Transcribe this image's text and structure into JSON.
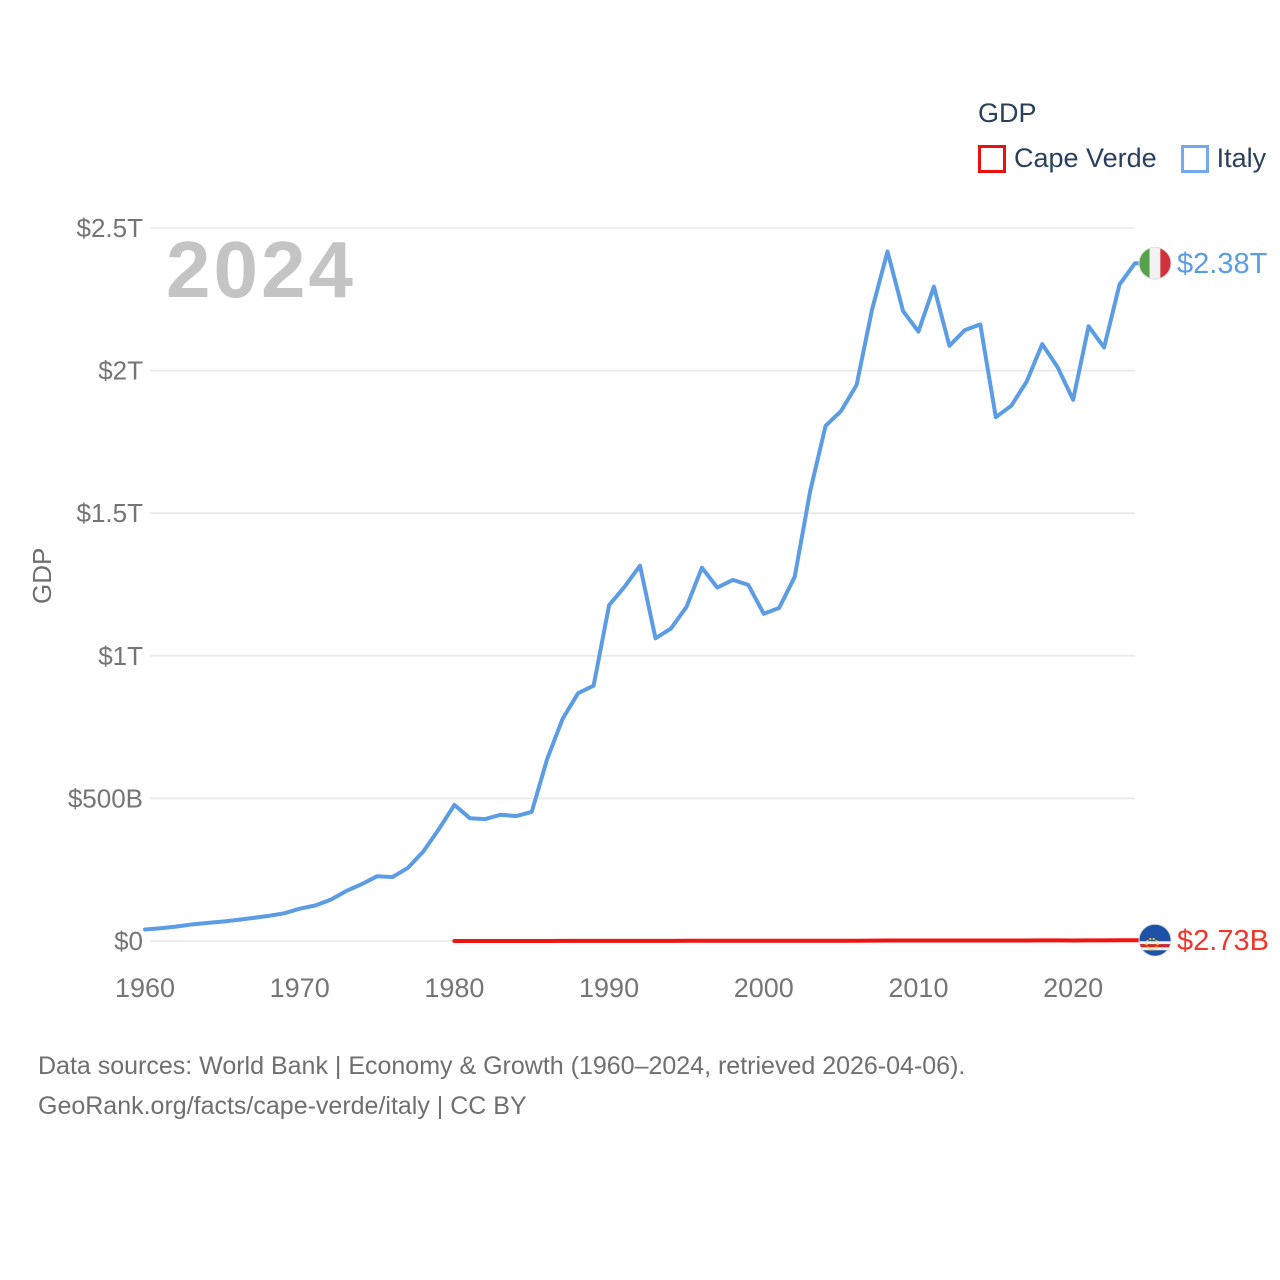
{
  "legend": {
    "title": "GDP",
    "items": [
      {
        "label": "Cape Verde",
        "swatch_color": "#ec0f0f"
      },
      {
        "label": "Italy",
        "swatch_color": "#74a9eb"
      }
    ]
  },
  "watermark": "2024",
  "y_axis_title": "GDP",
  "footer": {
    "line1": "Data sources: World Bank | Economy & Growth (1960–2024, retrieved 2026-04-06).",
    "line2": "GeoRank.org/facts/cape-verde/italy | CC BY"
  },
  "chart_data": {
    "type": "line",
    "title": "GDP",
    "ylabel": "GDP",
    "xlim": [
      1960,
      2024
    ],
    "ylim_billions": [
      0,
      2500
    ],
    "grid": true,
    "legend_position": "top-right",
    "x_ticks": [
      1960,
      1970,
      1980,
      1990,
      2000,
      2010,
      2020
    ],
    "y_ticks": [
      {
        "value": 0,
        "label": "$0"
      },
      {
        "value": 500,
        "label": "$500B"
      },
      {
        "value": 1000,
        "label": "$1T"
      },
      {
        "value": 1500,
        "label": "$1.5T"
      },
      {
        "value": 2000,
        "label": "$2T"
      },
      {
        "value": 2500,
        "label": "$2.5T"
      }
    ],
    "series": [
      {
        "name": "Italy",
        "color": "#5c9ce4",
        "end_label": "$2.38T",
        "end_label_color": "#5b9ce2",
        "flag": "italy",
        "start_year": 1960,
        "values_billions": [
          40.4,
          44.8,
          50.4,
          57.7,
          63.2,
          67.9,
          73.9,
          81.1,
          87.9,
          97.1,
          113.4,
          124.3,
          144.4,
          175.0,
          199.3,
          227.0,
          224.5,
          256.8,
          314.0,
          392.4,
          477.3,
          430.7,
          427.3,
          443.0,
          437.9,
          452.7,
          638.5,
          779.9,
          869.0,
          895.2,
          1177.3,
          1242.1,
          1315.8,
          1061.4,
          1095.5,
          1170.7,
          1308.9,
          1239.1,
          1266.3,
          1248.6,
          1147.2,
          1167.9,
          1277.0,
          1577.7,
          1806.6,
          1858.3,
          1949.6,
          2213.1,
          2417.5,
          2209.5,
          2136.9,
          2294.6,
          2086.9,
          2141.9,
          2162.0,
          1836.6,
          1877.1,
          1961.8,
          2092.9,
          2011.3,
          1897.5,
          2155.4,
          2081.0,
          2301.6,
          2376.5
        ]
      },
      {
        "name": "Cape Verde",
        "color": "#f01410",
        "end_label": "$2.73B",
        "end_label_color": "#f3362b",
        "flag": "cape-verde",
        "start_year": 1980,
        "values_billions": [
          0.11,
          0.12,
          0.13,
          0.14,
          0.13,
          0.13,
          0.16,
          0.2,
          0.24,
          0.26,
          0.31,
          0.34,
          0.39,
          0.39,
          0.41,
          0.55,
          0.54,
          0.53,
          0.57,
          0.62,
          0.54,
          0.56,
          0.62,
          0.81,
          0.92,
          0.97,
          1.11,
          1.51,
          1.79,
          1.71,
          1.66,
          1.86,
          1.75,
          1.85,
          1.86,
          1.6,
          1.66,
          1.77,
          1.97,
          1.98,
          1.7,
          1.94,
          2.13,
          2.45,
          2.73
        ]
      }
    ],
    "flag_colors": {
      "italy": {
        "green": "#56a24a",
        "white": "#f2f2f2",
        "red": "#d0333d"
      },
      "cape_verde": {
        "blue": "#1d52a8",
        "white": "#f2f2f2",
        "red": "#d8232a",
        "star_yellow": "#f7d020"
      }
    },
    "gridline_color": "#e8e8e8",
    "axis_text_color": "#757575"
  }
}
